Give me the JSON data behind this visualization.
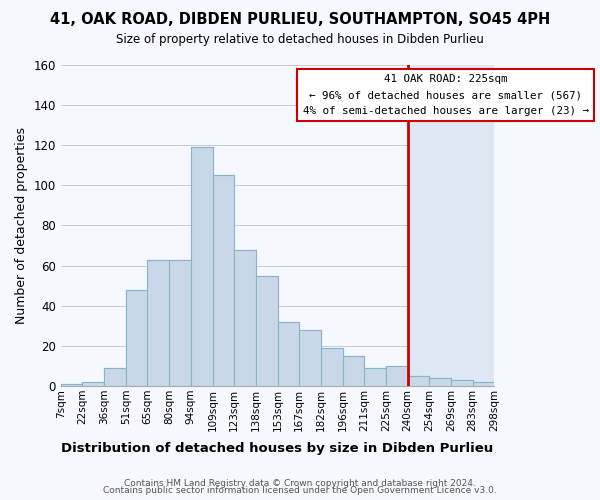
{
  "title": "41, OAK ROAD, DIBDEN PURLIEU, SOUTHAMPTON, SO45 4PH",
  "subtitle": "Size of property relative to detached houses in Dibden Purlieu",
  "xlabel": "Distribution of detached houses by size in Dibden Purlieu",
  "ylabel": "Number of detached properties",
  "bar_labels": [
    "7sqm",
    "22sqm",
    "36sqm",
    "51sqm",
    "65sqm",
    "80sqm",
    "94sqm",
    "109sqm",
    "123sqm",
    "138sqm",
    "153sqm",
    "167sqm",
    "182sqm",
    "196sqm",
    "211sqm",
    "225sqm",
    "240sqm",
    "254sqm",
    "269sqm",
    "283sqm",
    "298sqm"
  ],
  "bar_heights": [
    1,
    2,
    9,
    48,
    63,
    63,
    119,
    105,
    68,
    55,
    32,
    28,
    19,
    15,
    9,
    10,
    5,
    4,
    3,
    2
  ],
  "bar_color": "#c8d8e8",
  "bar_edge_color": "#8ab4cc",
  "ref_line_color": "#cc0000",
  "annotation_title": "41 OAK ROAD: 225sqm",
  "annotation_line1": "← 96% of detached houses are smaller (567)",
  "annotation_line2": "4% of semi-detached houses are larger (23) →",
  "right_bg_color": "#dde8f4",
  "ylim": [
    0,
    160
  ],
  "yticks": [
    0,
    20,
    40,
    60,
    80,
    100,
    120,
    140,
    160
  ],
  "footnote1": "Contains HM Land Registry data © Crown copyright and database right 2024.",
  "footnote2": "Contains public sector information licensed under the Open Government Licence v3.0.",
  "bg_color": "#f5f8ff"
}
